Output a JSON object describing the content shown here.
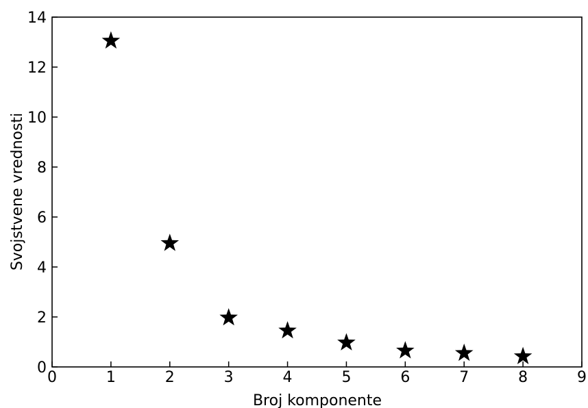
{
  "chart_data": {
    "type": "scatter",
    "title": "",
    "xlabel": "Broj komponente",
    "ylabel": "Svojstvene vrednosti",
    "xlim": [
      0,
      9
    ],
    "ylim": [
      0,
      14
    ],
    "xticks": [
      0,
      1,
      2,
      3,
      4,
      5,
      6,
      7,
      8,
      9
    ],
    "yticks": [
      0,
      2,
      4,
      6,
      8,
      10,
      12,
      14
    ],
    "grid": false,
    "marker": "star",
    "marker_color": "#000000",
    "series": [
      {
        "x": [
          1,
          2,
          3,
          4,
          5,
          6,
          7,
          8
        ],
        "y": [
          13.05,
          4.95,
          1.97,
          1.45,
          0.97,
          0.65,
          0.55,
          0.42
        ]
      }
    ]
  }
}
